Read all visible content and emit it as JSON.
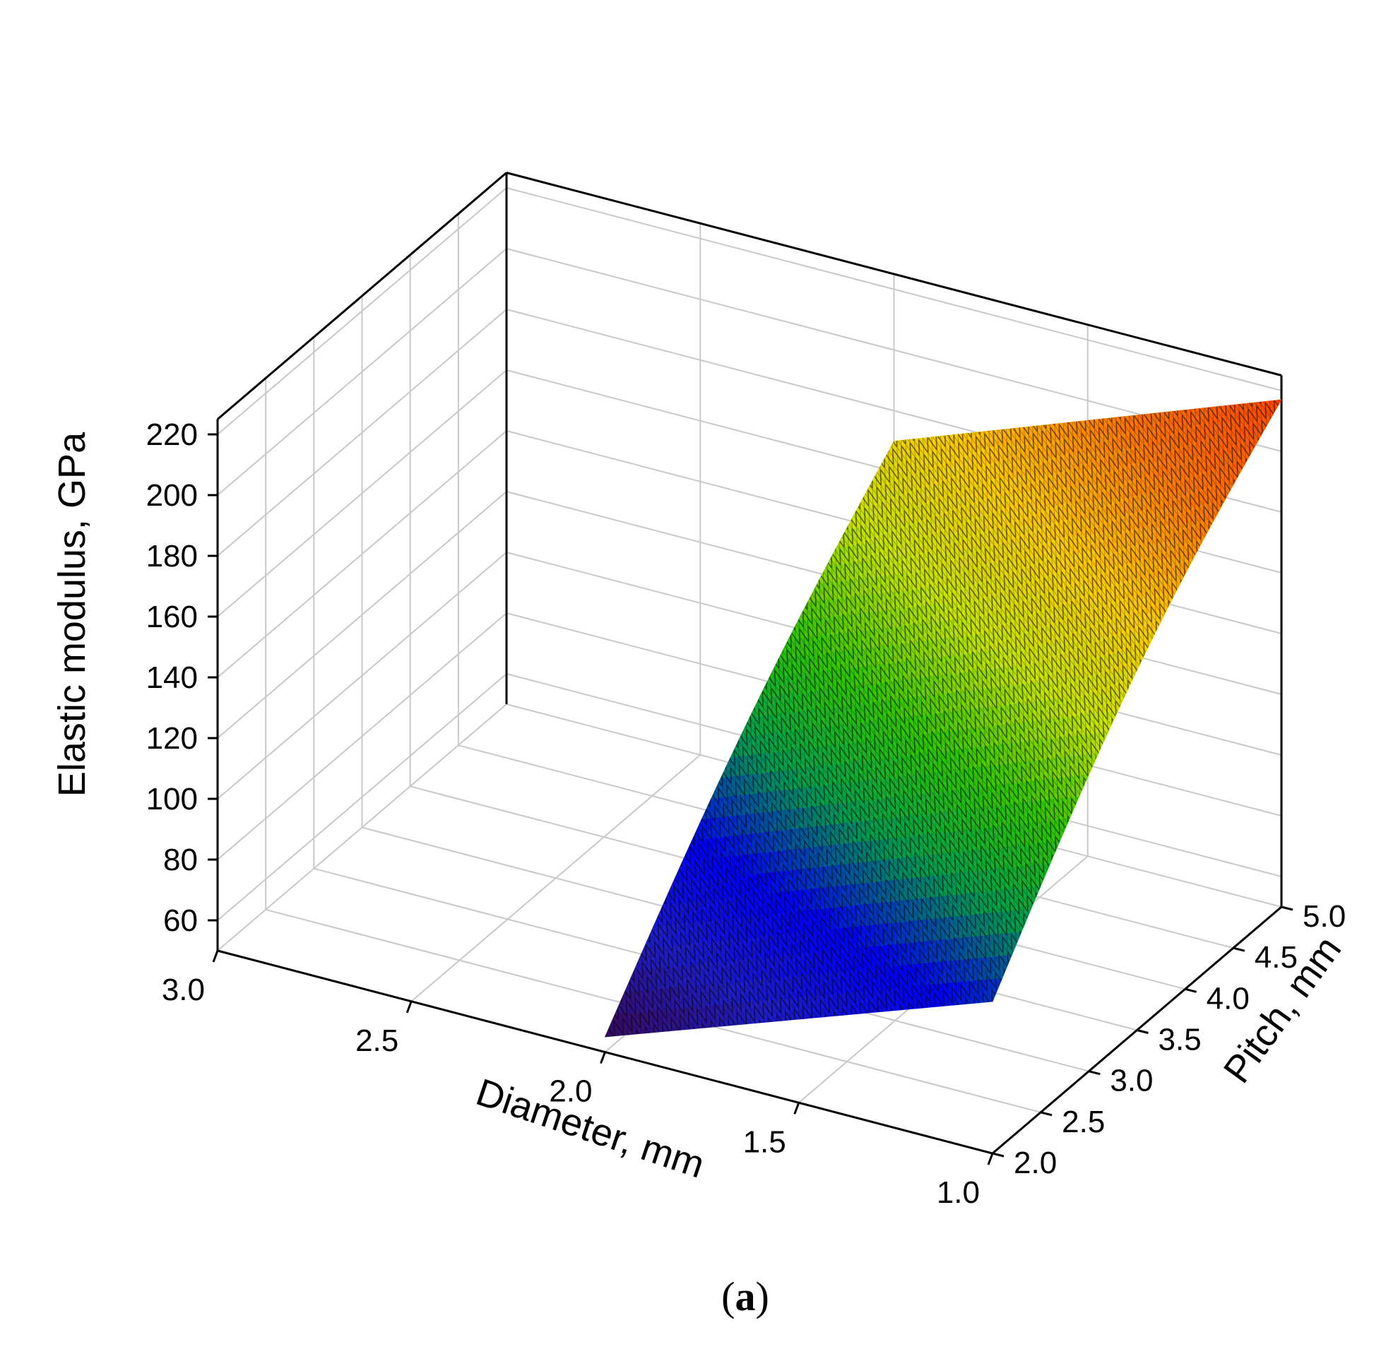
{
  "chart_data": {
    "type": "surface",
    "zlabel": "Elastic modulus, GPa",
    "xlabel": "Diameter, mm",
    "ylabel": "Pitch, mm",
    "caption_letter": "a",
    "x_ticks": [
      "1.0",
      "1.5",
      "2.0",
      "2.5",
      "3.0"
    ],
    "y_ticks": [
      "2.0",
      "2.5",
      "3.0",
      "3.5",
      "4.0",
      "4.5",
      "5.0"
    ],
    "z_ticks": [
      "60",
      "80",
      "100",
      "120",
      "140",
      "160",
      "180",
      "200",
      "220"
    ],
    "xlim": [
      1.0,
      3.0
    ],
    "ylim": [
      2.0,
      5.0
    ],
    "zlim": [
      50,
      225
    ],
    "surface_domain": {
      "diameter": [
        1.0,
        2.0
      ],
      "pitch": [
        2.0,
        5.0
      ]
    },
    "surface_corners": [
      {
        "diameter": 2.0,
        "pitch": 2.0,
        "elastic_modulus": 55
      },
      {
        "diameter": 1.0,
        "pitch": 2.0,
        "elastic_modulus": 100
      },
      {
        "diameter": 2.0,
        "pitch": 5.0,
        "elastic_modulus": 170
      },
      {
        "diameter": 1.0,
        "pitch": 5.0,
        "elastic_modulus": 217
      }
    ],
    "colormap": [
      "#3c0a5a",
      "#1e1ec8",
      "#0000ff",
      "#00a050",
      "#32c800",
      "#c8e600",
      "#ffcc00",
      "#ff7800",
      "#ff4800"
    ],
    "grid": true
  }
}
